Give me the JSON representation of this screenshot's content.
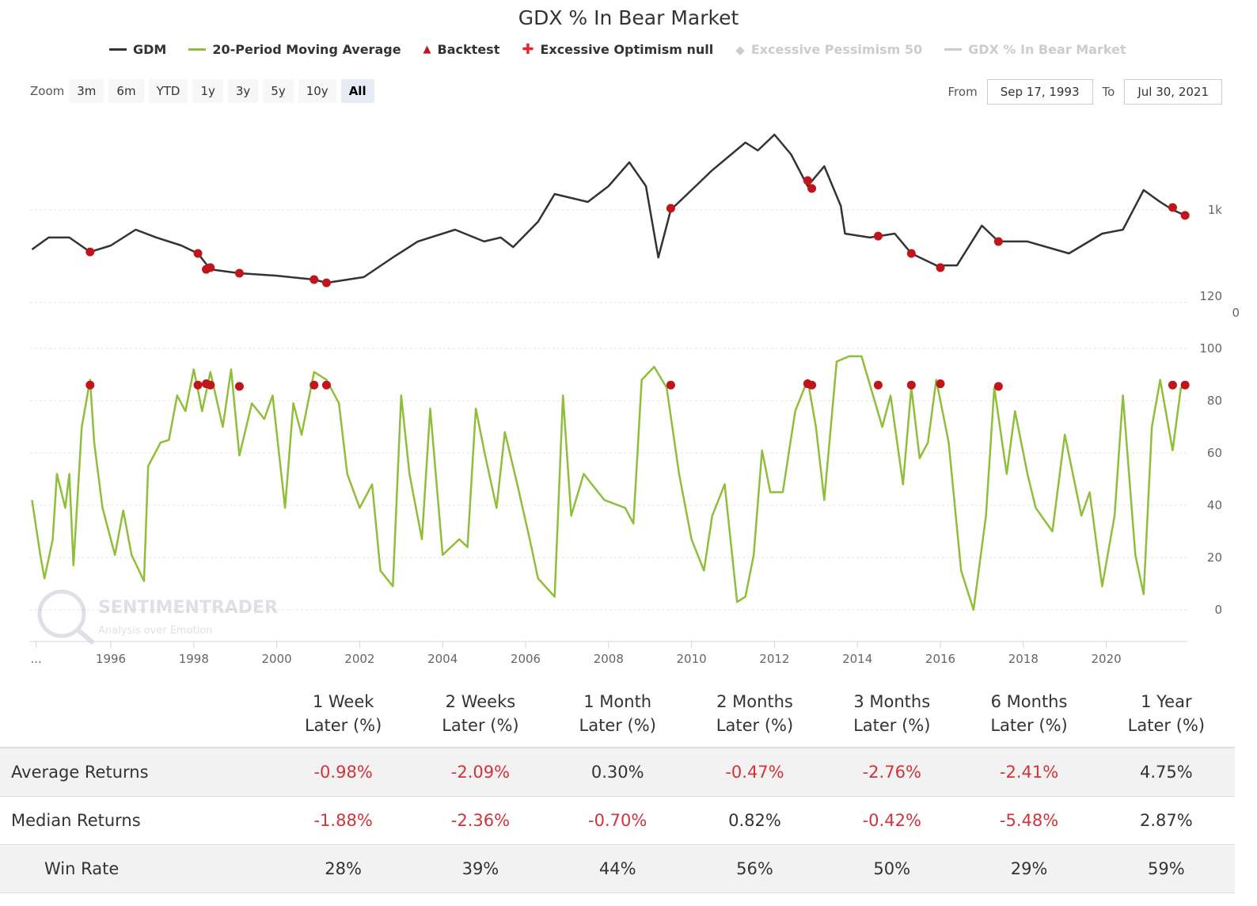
{
  "title": "GDX % In Bear Market",
  "legend": [
    {
      "label": "GDM",
      "color": "#333333",
      "shape": "line",
      "enabled": true
    },
    {
      "label": "20-Period Moving Average",
      "color": "#8fbf3a",
      "shape": "line",
      "enabled": true
    },
    {
      "label": "Backtest",
      "color": "#c0161b",
      "shape": "triangle",
      "enabled": true
    },
    {
      "label": "Excessive Optimism null",
      "color": "#e8252b",
      "shape": "plus",
      "enabled": true
    },
    {
      "label": "Excessive Pessimism 50",
      "color": "#cccccc",
      "shape": "diamond",
      "enabled": false
    },
    {
      "label": "GDX % In Bear Market",
      "color": "#cccccc",
      "shape": "line",
      "enabled": false
    }
  ],
  "zoom": {
    "label": "Zoom",
    "buttons": [
      "3m",
      "6m",
      "YTD",
      "1y",
      "3y",
      "5y",
      "10y",
      "All"
    ],
    "active": "All"
  },
  "range": {
    "from_label": "From",
    "from": "Sep 17, 1993",
    "to_label": "To",
    "to": "Jul 30, 2021"
  },
  "watermark": {
    "name": "SENTIMENTRADER",
    "tagline": "Analysis over Emotion"
  },
  "chart_data": {
    "type": "line",
    "xaxis": {
      "ticks": [
        "...",
        "1996",
        "1998",
        "2000",
        "2002",
        "2004",
        "2006",
        "2008",
        "2010",
        "2012",
        "2014",
        "2016",
        "2018",
        "2020"
      ],
      "tick_years": [
        1994.2,
        1996,
        1998,
        2000,
        2002,
        2004,
        2006,
        2008,
        2010,
        2012,
        2014,
        2016,
        2018,
        2020
      ],
      "range": [
        1994.1,
        2021.9
      ]
    },
    "top_panel": {
      "scale": "log",
      "yticks": [
        "1k"
      ],
      "ytick_values": [
        1000
      ],
      "extra_label": "0",
      "series": {
        "name": "GDM",
        "color": "#333333",
        "x": [
          1994.1,
          1994.5,
          1995.0,
          1995.5,
          1996.0,
          1996.6,
          1997.1,
          1997.7,
          1998.1,
          1998.4,
          1999.1,
          2000.0,
          2000.9,
          2001.2,
          2002.1,
          2002.8,
          2003.4,
          2004.3,
          2005.0,
          2005.4,
          2005.7,
          2006.3,
          2006.7,
          2007.5,
          2008.0,
          2008.5,
          2008.9,
          2009.2,
          2009.5,
          2009.9,
          2010.5,
          2011.3,
          2011.6,
          2012.0,
          2012.4,
          2012.8,
          2013.2,
          2013.6,
          2013.7,
          2014.3,
          2014.9,
          2015.3,
          2015.9,
          2016.4,
          2017.0,
          2017.4,
          2018.1,
          2019.1,
          2019.9,
          2020.4,
          2020.9,
          2021.3,
          2021.6,
          2021.9
        ],
        "y": [
          707,
          785,
          785,
          692,
          732,
          841,
          785,
          732,
          683,
          594,
          574,
          562,
          543,
          528,
          555,
          659,
          758,
          841,
          758,
          785,
          722,
          901,
          1149,
          1072,
          1231,
          1517,
          1231,
          659,
          1000,
          1149,
          1415,
          1803,
          1682,
          1932,
          1625,
          1231,
          1465,
          1035,
          812,
          785,
          812,
          683,
          615,
          615,
          871,
          758,
          758,
          683,
          812,
          841,
          1189,
          1072,
          1000,
          953
        ]
      },
      "backtest": {
        "x": [
          1995.5,
          1998.1,
          1998.3,
          1998.4,
          1999.1,
          2000.9,
          2001.2,
          2009.5,
          2012.8,
          2012.9,
          2014.5,
          2015.3,
          2016.0,
          2017.4,
          2021.6,
          2021.9
        ],
        "y": [
          692,
          683,
          594,
          603,
          574,
          543,
          528,
          1014,
          1292,
          1206,
          795,
          683,
          603,
          758,
          1021,
          953
        ]
      }
    },
    "bottom_panel": {
      "yticks": [
        "0",
        "20",
        "40",
        "60",
        "80",
        "100",
        "120"
      ],
      "ytick_values": [
        0,
        20,
        40,
        60,
        80,
        100,
        120
      ],
      "ylim": [
        0,
        120
      ],
      "series": {
        "name": "20-Period Moving Average",
        "color": "#8fbf3a",
        "x": [
          1994.1,
          1994.3,
          1994.4,
          1994.6,
          1994.7,
          1994.9,
          1995.0,
          1995.1,
          1995.3,
          1995.5,
          1995.6,
          1995.8,
          1996.1,
          1996.3,
          1996.5,
          1996.8,
          1996.9,
          1997.2,
          1997.4,
          1997.6,
          1997.8,
          1998.0,
          1998.2,
          1998.4,
          1998.7,
          1998.9,
          1999.1,
          1999.4,
          1999.7,
          1999.9,
          2000.2,
          2000.4,
          2000.6,
          2000.9,
          2001.2,
          2001.5,
          2001.7,
          2002.0,
          2002.3,
          2002.5,
          2002.8,
          2003.0,
          2003.2,
          2003.5,
          2003.7,
          2004.0,
          2004.4,
          2004.6,
          2004.8,
          2005.0,
          2005.3,
          2005.5,
          2005.8,
          2006.1,
          2006.3,
          2006.7,
          2006.9,
          2007.1,
          2007.4,
          2007.6,
          2007.9,
          2008.4,
          2008.6,
          2008.8,
          2009.1,
          2009.4,
          2009.7,
          2010.0,
          2010.3,
          2010.5,
          2010.8,
          2011.1,
          2011.3,
          2011.5,
          2011.7,
          2011.9,
          2012.2,
          2012.5,
          2012.8,
          2013.0,
          2013.2,
          2013.5,
          2013.8,
          2014.1,
          2014.6,
          2014.8,
          2015.1,
          2015.3,
          2015.5,
          2015.7,
          2015.9,
          2016.2,
          2016.5,
          2016.8,
          2017.1,
          2017.3,
          2017.6,
          2017.8,
          2018.1,
          2018.3,
          2018.7,
          2019.0,
          2019.4,
          2019.6,
          2019.9,
          2020.2,
          2020.4,
          2020.7,
          2020.9,
          2021.1,
          2021.3,
          2021.6,
          2021.8,
          2021.9
        ],
        "y": [
          42,
          21,
          12,
          27,
          52,
          39,
          52,
          17,
          70,
          88,
          64,
          39,
          21,
          38,
          21,
          11,
          55,
          64,
          65,
          82,
          76,
          92,
          76,
          91,
          70,
          92,
          59,
          79,
          73,
          82,
          39,
          79,
          67,
          91,
          88,
          79,
          52,
          39,
          48,
          15,
          9,
          82,
          52,
          27,
          77,
          21,
          27,
          24,
          77,
          61,
          39,
          68,
          48,
          27,
          12,
          5,
          82,
          36,
          52,
          48,
          42,
          39,
          33,
          88,
          93,
          85,
          52,
          27,
          15,
          36,
          48,
          3,
          5,
          21,
          61,
          45,
          45,
          76,
          88,
          70,
          42,
          95,
          97,
          97,
          70,
          82,
          48,
          85,
          58,
          64,
          88,
          64,
          15,
          0,
          36,
          85,
          52,
          76,
          52,
          39,
          30,
          67,
          36,
          45,
          9,
          36,
          82,
          21,
          6,
          70,
          88,
          61,
          85,
          85
        ]
      },
      "backtest": {
        "x": [
          1995.5,
          1998.1,
          1998.3,
          1998.4,
          1999.1,
          2000.9,
          2001.2,
          2009.5,
          2012.8,
          2012.9,
          2014.5,
          2015.3,
          2016.0,
          2017.4,
          2021.6,
          2021.9
        ],
        "y": [
          86,
          86,
          86.5,
          86,
          85.5,
          86,
          86,
          86,
          86.5,
          86,
          86,
          86,
          86.5,
          85.5,
          86,
          86
        ]
      }
    }
  },
  "table": {
    "headers": [
      [
        "1 Week",
        "Later (%)"
      ],
      [
        "2 Weeks",
        "Later (%)"
      ],
      [
        "1 Month",
        "Later (%)"
      ],
      [
        "2 Months",
        "Later (%)"
      ],
      [
        "3 Months",
        "Later (%)"
      ],
      [
        "6 Months",
        "Later (%)"
      ],
      [
        "1 Year",
        "Later (%)"
      ]
    ],
    "rows": [
      {
        "label": "Average Returns",
        "values": [
          "-0.98%",
          "-2.09%",
          "0.30%",
          "-0.47%",
          "-2.76%",
          "-2.41%",
          "4.75%"
        ]
      },
      {
        "label": "Median Returns",
        "values": [
          "-1.88%",
          "-2.36%",
          "-0.70%",
          "0.82%",
          "-0.42%",
          "-5.48%",
          "2.87%"
        ]
      },
      {
        "label": "Win Rate",
        "values": [
          "28%",
          "39%",
          "44%",
          "56%",
          "50%",
          "29%",
          "59%"
        ]
      }
    ]
  }
}
